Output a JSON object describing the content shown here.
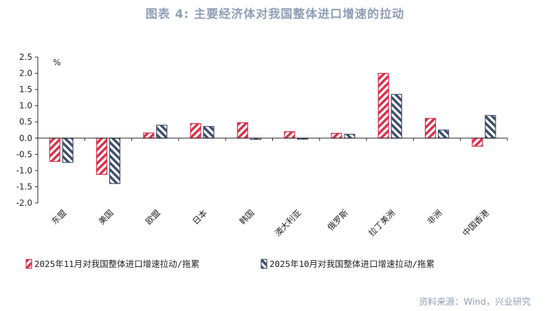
{
  "title": "图表 4:   主要经济体对我国整体进口增速的拉动",
  "source": "资料来源：Wind，兴业研究",
  "chart_data": {
    "type": "bar",
    "unit": "%",
    "categories": [
      "东盟",
      "美国",
      "欧盟",
      "日本",
      "韩国",
      "澳大利亚",
      "俄罗斯",
      "拉丁美洲",
      "非洲",
      "中国香港"
    ],
    "series": [
      {
        "name": "2025年11月对我国整体进口增速拉动/拖累",
        "color": "#d9314a",
        "values": [
          -0.72,
          -1.12,
          0.16,
          0.45,
          0.48,
          0.2,
          0.15,
          2.0,
          0.61,
          -0.25
        ]
      },
      {
        "name": "2025年10月对我国整体进口增速拉动/拖累",
        "color": "#3d4d6b",
        "values": [
          -0.75,
          -1.4,
          0.4,
          0.36,
          -0.04,
          -0.03,
          0.12,
          1.35,
          0.25,
          0.7
        ]
      }
    ],
    "ylim": [
      -2.0,
      2.5
    ],
    "yticks": [
      "2.5",
      "2.0",
      "1.5",
      "1.0",
      "0.5",
      "0.0",
      "-0.5",
      "-1.0",
      "-1.5",
      "-2.0"
    ],
    "legend_position": "bottom"
  }
}
